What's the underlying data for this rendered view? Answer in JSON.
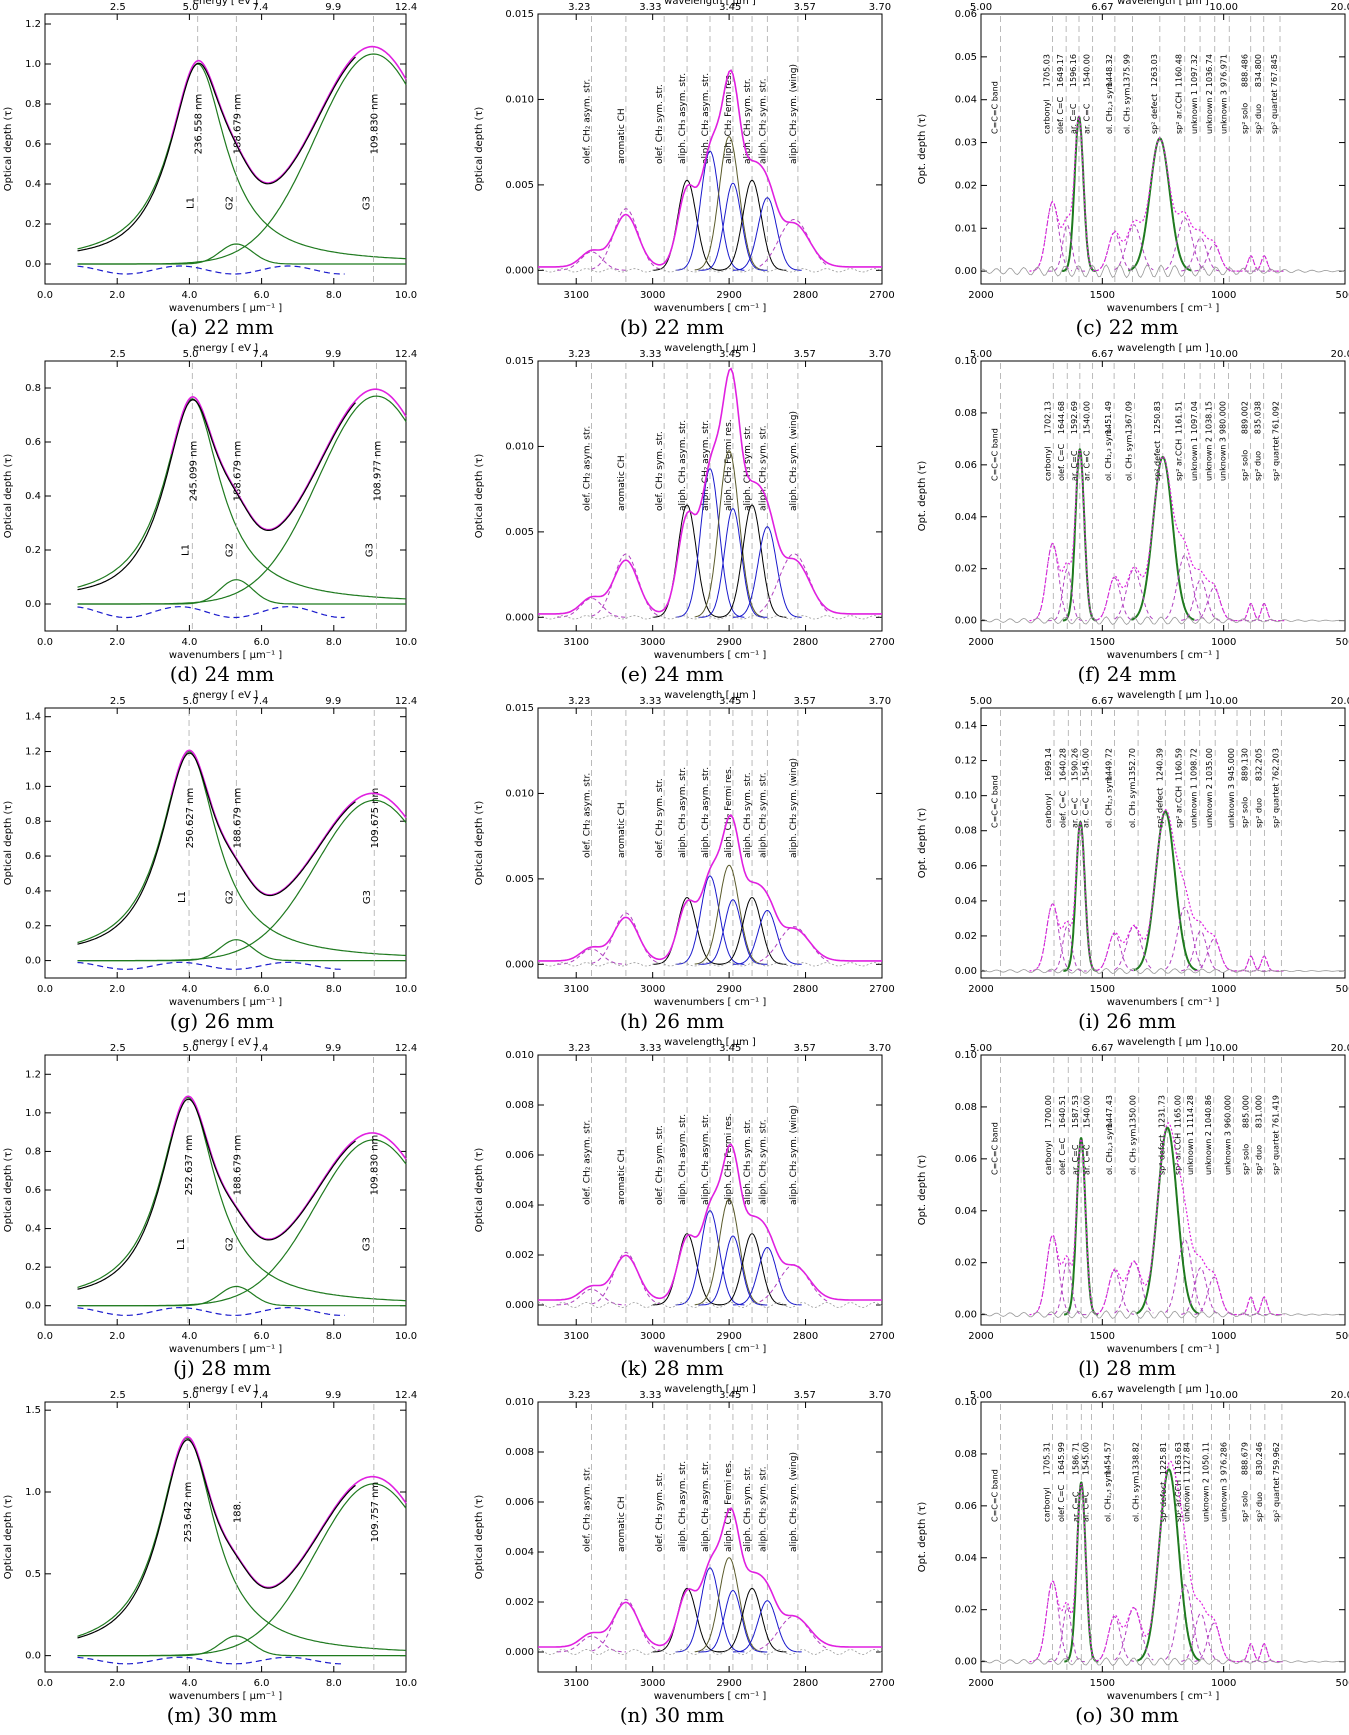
{
  "figure": {
    "uv_axes": {
      "xlabel": "wavenumbers [ μm⁻¹ ]",
      "ylabel": "Optical depth (τ)",
      "top_label": "energy [ eV ]",
      "bottom_ticks": [
        "0.0",
        "2.0",
        "4.0",
        "6.0",
        "8.0",
        "10.0"
      ],
      "top_ticks": [
        "2.5",
        "5.0",
        "7.4",
        "9.9",
        "12.4"
      ]
    },
    "ch_axes": {
      "xlabel": "wavenumbers [ cm⁻¹ ]",
      "ylabel": "Optical depth (τ)",
      "top_label": "wavelength [ μm ]",
      "bottom_ticks": [
        "3100",
        "3000",
        "2900",
        "2800",
        "2700"
      ],
      "top_ticks": [
        "3.23",
        "3.33",
        "3.45",
        "3.57",
        "3.70"
      ]
    },
    "ir_axes": {
      "xlabel": "wavenumbers [ cm⁻¹ ]",
      "ylabel": "Opt. depth (τ)",
      "top_label": "wavelength [ μm ]",
      "bottom_ticks": [
        "2000",
        "1500",
        "1000",
        "500"
      ],
      "top_ticks": [
        "5.00",
        "6.67",
        "10.00",
        "20.00"
      ]
    },
    "ch_line_labels": [
      "olef. CH₂ asym. str.",
      "aromatic CH",
      "olef. CH₂ sym. str.",
      "aliph. CH₃ asym. str.",
      "aliph. CH₂ asym. str.",
      "aliph. CH₂ Fermi res.",
      "aliph. CH₃ sym. str.",
      "aliph. CH₂ sym. str.",
      "aliph. CH₂ sym. (wing)"
    ],
    "ir_line_labels": [
      "C=C=C band",
      "carbonyl",
      "olef. C=C",
      "ar. C=C",
      "ar. C=C",
      "ol. CH₂,₃ sym.",
      "ol. CH₃ sym.",
      "sp² defect",
      "sp² ar.CCH",
      "unknown 1",
      "unknown 2",
      "unknown 3",
      "sp² solo",
      "sp² duo",
      "sp² quartet"
    ]
  },
  "chart_data": [
    {
      "id": "a",
      "caption": "(a)  22 mm",
      "type": "line",
      "kind": "uv",
      "ylim": [
        -0.1,
        1.25
      ],
      "yticks": [
        "0.0",
        "0.2",
        "0.4",
        "0.6",
        "0.8",
        "1.0",
        "1.2"
      ],
      "peaks": [
        {
          "label": "L1",
          "wavelength": "236.558 nm",
          "x": 4.23,
          "h": 1.0,
          "w": 0.95
        },
        {
          "label": "G2",
          "wavelength": "188.679 nm",
          "x": 5.3,
          "h": 0.1,
          "w": 0.45
        },
        {
          "label": "G3",
          "wavelength": "109.830 nm",
          "x": 9.1,
          "h": 1.05,
          "w": 1.6
        }
      ],
      "peak_max": 1.06,
      "fit_max": 1.12
    },
    {
      "id": "b",
      "caption": "(b)  22 mm",
      "type": "line",
      "kind": "ch",
      "ylim": [
        -0.0008,
        0.015
      ],
      "yticks": [
        "0.000",
        "0.005",
        "0.010",
        "0.015"
      ],
      "peak_max": 0.0085,
      "arom": 0.0036
    },
    {
      "id": "c",
      "caption": "(c)  22 mm",
      "type": "line",
      "kind": "ir",
      "ylim": [
        -0.003,
        0.06
      ],
      "yticks": [
        "0.00",
        "0.01",
        "0.02",
        "0.03",
        "0.04",
        "0.05",
        "0.06"
      ],
      "positions": [
        "1705.03",
        "1649.17",
        "1596.16",
        "1540.00",
        "1448.32",
        "1375.99",
        "1263.03",
        "1160.48",
        "1097.32",
        "1036.74",
        "976.971",
        "888.486",
        "834.800",
        "767.845"
      ],
      "peak_cc": 0.036,
      "peak_def": 0.031,
      "max": 0.041
    },
    {
      "id": "d",
      "caption": "(d)  24 mm",
      "type": "line",
      "kind": "uv",
      "ylim": [
        -0.1,
        0.9
      ],
      "yticks": [
        "0.0",
        "0.2",
        "0.4",
        "0.6",
        "0.8"
      ],
      "peaks": [
        {
          "label": "L1",
          "wavelength": "245.099 nm",
          "x": 4.08,
          "h": 0.76,
          "w": 0.95
        },
        {
          "label": "G2",
          "wavelength": "188.679 nm",
          "x": 5.3,
          "h": 0.09,
          "w": 0.45
        },
        {
          "label": "G3",
          "wavelength": "108.977 nm",
          "x": 9.18,
          "h": 0.77,
          "w": 1.6
        }
      ],
      "peak_max": 0.78,
      "fit_max": 0.82
    },
    {
      "id": "e",
      "caption": "(e)  24 mm",
      "type": "line",
      "kind": "ch",
      "ylim": [
        -0.0008,
        0.015
      ],
      "yticks": [
        "0.000",
        "0.005",
        "0.010",
        "0.015"
      ],
      "peak_max": 0.0106,
      "arom": 0.0037
    },
    {
      "id": "f",
      "caption": "(f)  24 mm",
      "type": "line",
      "kind": "ir",
      "ylim": [
        -0.004,
        0.1
      ],
      "yticks": [
        "0.00",
        "0.02",
        "0.04",
        "0.06",
        "0.08",
        "0.10"
      ],
      "positions": [
        "1702.13",
        "1644.68",
        "1592.69",
        "1540.00",
        "1451.49",
        "1367.09",
        "1250.83",
        "1161.51",
        "1097.04",
        "1038.15",
        "980.000",
        "889.002",
        "835.038",
        "761.092"
      ],
      "peak_cc": 0.066,
      "peak_def": 0.063,
      "max": 0.075
    },
    {
      "id": "g",
      "caption": "(g)  26 mm",
      "type": "line",
      "kind": "uv",
      "ylim": [
        -0.1,
        1.45
      ],
      "yticks": [
        "0.0",
        "0.2",
        "0.4",
        "0.6",
        "0.8",
        "1.0",
        "1.2",
        "1.4"
      ],
      "peaks": [
        {
          "label": "L1",
          "wavelength": "250.627 nm",
          "x": 3.99,
          "h": 1.2,
          "w": 0.95
        },
        {
          "label": "G2",
          "wavelength": "188.679 nm",
          "x": 5.3,
          "h": 0.12,
          "w": 0.45
        },
        {
          "label": "G3",
          "wavelength": "109.675 nm",
          "x": 9.12,
          "h": 0.92,
          "w": 1.6
        }
      ],
      "peak_max": 1.25,
      "fit_max": 1.0
    },
    {
      "id": "h",
      "caption": "(h)  26 mm",
      "type": "line",
      "kind": "ch",
      "ylim": [
        -0.0008,
        0.015
      ],
      "yticks": [
        "0.000",
        "0.005",
        "0.010",
        "0.015"
      ],
      "peak_max": 0.0063,
      "arom": 0.003
    },
    {
      "id": "i",
      "caption": "(i)  26 mm",
      "type": "line",
      "kind": "ir",
      "ylim": [
        -0.004,
        0.15
      ],
      "yticks": [
        "0.00",
        "0.02",
        "0.04",
        "0.06",
        "0.08",
        "0.10",
        "0.12",
        "0.14"
      ],
      "positions": [
        "1699.14",
        "1640.28",
        "1590.26",
        "1545.00",
        "1449.72",
        "1352.70",
        "1240.39",
        "1160.59",
        "1098.72",
        "1035.00",
        "945.000",
        "889.130",
        "832.205",
        "762.203"
      ],
      "peak_cc": 0.085,
      "peak_def": 0.091,
      "max": 0.1
    },
    {
      "id": "j",
      "caption": "(j)  28 mm",
      "type": "line",
      "kind": "uv",
      "ylim": [
        -0.1,
        1.3
      ],
      "yticks": [
        "0.0",
        "0.2",
        "0.4",
        "0.6",
        "0.8",
        "1.0",
        "1.2"
      ],
      "peaks": [
        {
          "label": "L1",
          "wavelength": "252.637 nm",
          "x": 3.96,
          "h": 1.08,
          "w": 0.95
        },
        {
          "label": "G2",
          "wavelength": "188.679 nm",
          "x": 5.3,
          "h": 0.1,
          "w": 0.45
        },
        {
          "label": "G3",
          "wavelength": "109.830 nm",
          "x": 9.1,
          "h": 0.86,
          "w": 1.6
        }
      ],
      "peak_max": 1.11,
      "fit_max": 0.93
    },
    {
      "id": "k",
      "caption": "(k)  28 mm",
      "type": "line",
      "kind": "ch",
      "ylim": [
        -0.0008,
        0.01
      ],
      "yticks": [
        "0.000",
        "0.002",
        "0.004",
        "0.006",
        "0.008",
        "0.010"
      ],
      "peak_max": 0.0046,
      "arom": 0.0021
    },
    {
      "id": "l",
      "caption": "(l)  28 mm",
      "type": "line",
      "kind": "ir",
      "ylim": [
        -0.004,
        0.1
      ],
      "yticks": [
        "0.00",
        "0.02",
        "0.04",
        "0.06",
        "0.08",
        "0.10"
      ],
      "positions": [
        "1700.00",
        "1640.51",
        "1587.53",
        "1540.00",
        "1447.43",
        "1350.00",
        "1231.73",
        "1165.00",
        "1114.28",
        "1040.86",
        "960.000",
        "885.000",
        "831.000",
        "761.419"
      ],
      "peak_cc": 0.068,
      "peak_def": 0.072,
      "max": 0.08
    },
    {
      "id": "m",
      "caption": "(m)  30 mm",
      "type": "line",
      "kind": "uv",
      "ylim": [
        -0.1,
        1.55
      ],
      "yticks": [
        "0.0",
        "0.5",
        "1.0",
        "1.5"
      ],
      "peaks": [
        {
          "label": "",
          "wavelength": "253.642 nm",
          "x": 3.94,
          "h": 1.33,
          "w": 0.95
        },
        {
          "label": "",
          "wavelength": "188.",
          "x": 5.3,
          "h": 0.12,
          "w": 0.45
        },
        {
          "label": "",
          "wavelength": "109.757 nm",
          "x": 9.11,
          "h": 1.05,
          "w": 1.6
        }
      ],
      "peak_max": 1.36,
      "fit_max": 1.12
    },
    {
      "id": "n",
      "caption": "(n)  30 mm",
      "type": "line",
      "kind": "ch",
      "ylim": [
        -0.0008,
        0.01
      ],
      "yticks": [
        "0.000",
        "0.002",
        "0.004",
        "0.006",
        "0.008",
        "0.010"
      ],
      "peak_max": 0.0041,
      "arom": 0.0021
    },
    {
      "id": "o",
      "caption": "(o)  30 mm",
      "type": "line",
      "kind": "ir",
      "ylim": [
        -0.004,
        0.1
      ],
      "yticks": [
        "0.00",
        "0.02",
        "0.04",
        "0.06",
        "0.08",
        "0.10"
      ],
      "positions": [
        "1705.31",
        "1645.99",
        "1586.71",
        "1545.00",
        "1454.57",
        "1338.82",
        "1225.81",
        "1163.63",
        "1127.84",
        "1050.11",
        "976.286",
        "888.679",
        "830.246",
        "759.962"
      ],
      "peak_cc": 0.069,
      "peak_def": 0.074,
      "max": 0.078
    }
  ]
}
